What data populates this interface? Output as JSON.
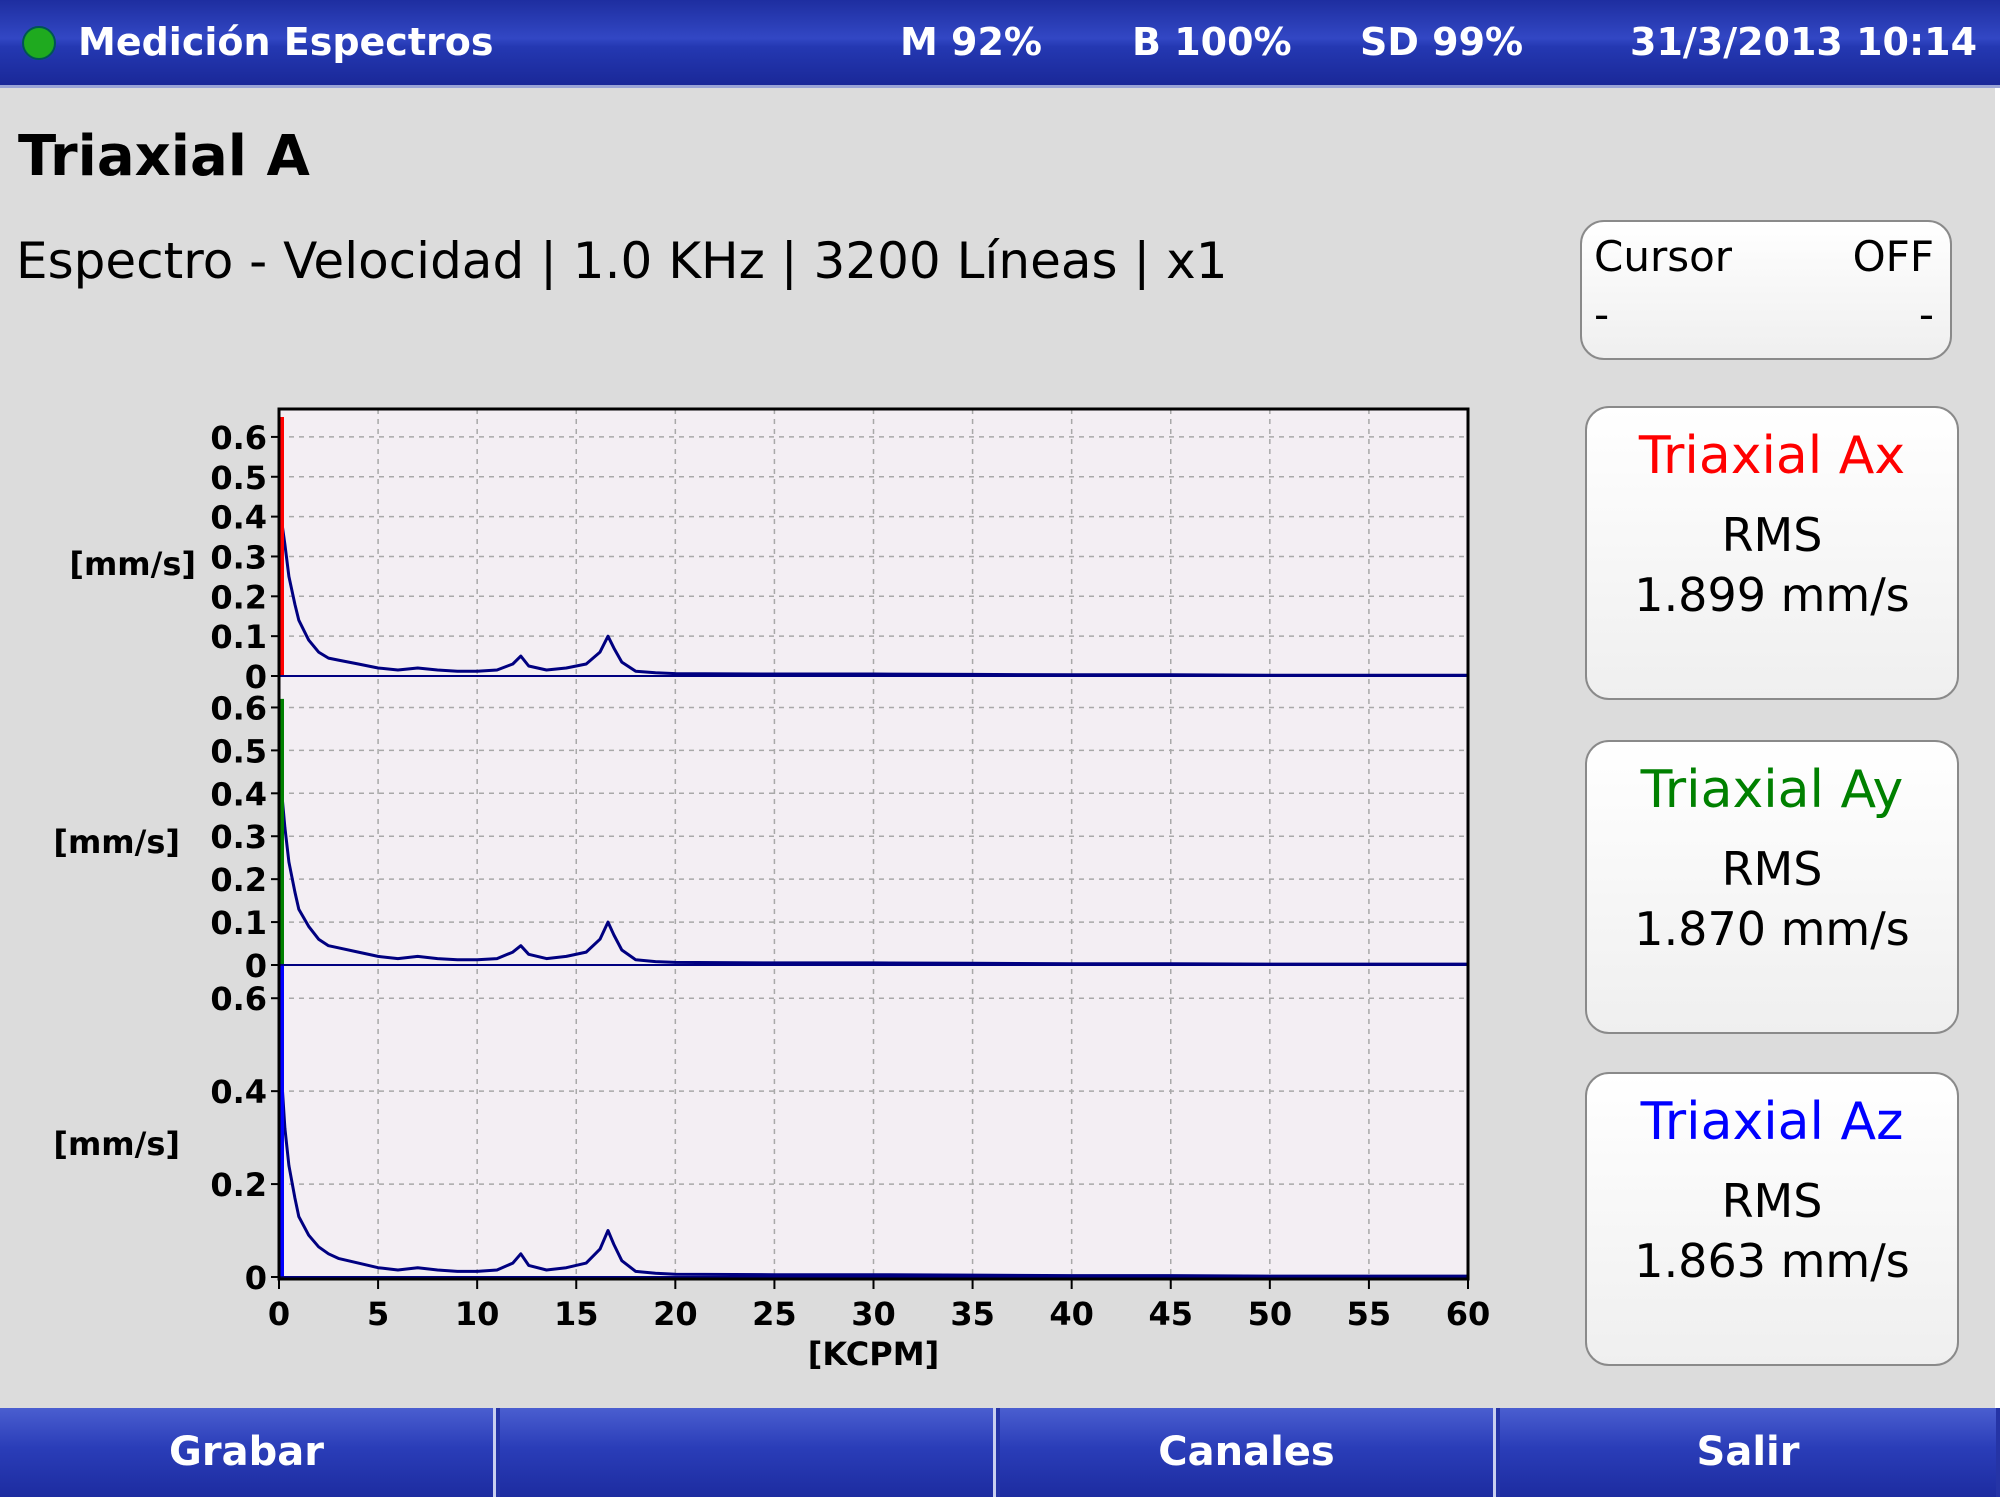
{
  "header": {
    "title": "Medición Espectros",
    "memory": "M 92%",
    "battery": "B 100%",
    "sd": "SD 99%",
    "datetime": "31/3/2013 10:14",
    "status_color": "#1faa1f"
  },
  "page_title": "Triaxial A",
  "subtitle": "Espectro - Velocidad | 1.0 KHz | 3200 Líneas | x1",
  "cursor": {
    "label": "Cursor",
    "state": "OFF",
    "left_value": "-",
    "right_value": "-"
  },
  "channels": [
    {
      "name": "Triaxial Ax",
      "label": "RMS",
      "value": "1.899 mm/s",
      "color": "#ff0000"
    },
    {
      "name": "Triaxial Ay",
      "label": "RMS",
      "value": "1.870 mm/s",
      "color": "#008000"
    },
    {
      "name": "Triaxial Az",
      "label": "RMS",
      "value": "1.863 mm/s",
      "color": "#0000ff"
    }
  ],
  "buttons": [
    "Grabar",
    "",
    "Canales",
    "Salir"
  ],
  "chart_data": {
    "type": "line",
    "xlabel": "[KCPM]",
    "xlim": [
      0,
      60
    ],
    "xticks": [
      0,
      5,
      10,
      15,
      20,
      25,
      30,
      35,
      40,
      45,
      50,
      55,
      60
    ],
    "grid": true,
    "line_color": "#000080",
    "panels": [
      {
        "ylabel": "[mm/s]",
        "ylim": [
          0,
          0.65
        ],
        "yticks": [
          0,
          0.1,
          0.2,
          0.3,
          0.4,
          0.5,
          0.6
        ],
        "marker_color": "#ff0000",
        "marker_top": 0.65
      },
      {
        "ylabel": "[mm/s]",
        "ylim": [
          0,
          0.65
        ],
        "yticks": [
          0,
          0.1,
          0.2,
          0.3,
          0.4,
          0.5,
          0.6
        ],
        "marker_color": "#008000",
        "marker_top": 0.62
      },
      {
        "ylabel": "[mm/s]",
        "ylim": [
          0,
          0.65
        ],
        "yticks": [
          0,
          0.2,
          0.4,
          0.6
        ],
        "marker_color": "#0000ff",
        "marker_top": 0.67
      }
    ],
    "series": [
      {
        "x": [
          0,
          0.1,
          0.3,
          0.5,
          0.8,
          1.0,
          1.5,
          2.0,
          2.5,
          3.0,
          4.0,
          5.0,
          6.0,
          7.0,
          8.0,
          9.0,
          10.0,
          11.0,
          11.8,
          12.2,
          12.6,
          13.5,
          14.5,
          15.5,
          16.2,
          16.6,
          16.9,
          17.3,
          18.0,
          19.0,
          20.0,
          25.0,
          30.0,
          35.0,
          40.0,
          45.0,
          50.0,
          55.0,
          60.0
        ],
        "y": [
          0.55,
          0.4,
          0.33,
          0.25,
          0.18,
          0.14,
          0.09,
          0.06,
          0.045,
          0.04,
          0.03,
          0.02,
          0.015,
          0.02,
          0.015,
          0.012,
          0.012,
          0.015,
          0.03,
          0.05,
          0.025,
          0.015,
          0.02,
          0.03,
          0.06,
          0.1,
          0.07,
          0.035,
          0.012,
          0.008,
          0.006,
          0.005,
          0.005,
          0.004,
          0.003,
          0.003,
          0.002,
          0.002,
          0.002
        ]
      },
      {
        "x": [
          0,
          0.1,
          0.3,
          0.5,
          0.8,
          1.0,
          1.5,
          2.0,
          2.5,
          3.0,
          4.0,
          5.0,
          6.0,
          7.0,
          8.0,
          9.0,
          10.0,
          11.0,
          11.8,
          12.2,
          12.6,
          13.5,
          14.5,
          15.5,
          16.2,
          16.6,
          16.9,
          17.3,
          18.0,
          19.0,
          20.0,
          25.0,
          30.0,
          35.0,
          40.0,
          45.0,
          50.0,
          55.0,
          60.0
        ],
        "y": [
          0.58,
          0.42,
          0.32,
          0.24,
          0.17,
          0.13,
          0.09,
          0.06,
          0.045,
          0.04,
          0.03,
          0.02,
          0.015,
          0.02,
          0.015,
          0.012,
          0.012,
          0.015,
          0.03,
          0.045,
          0.025,
          0.015,
          0.02,
          0.03,
          0.06,
          0.1,
          0.07,
          0.035,
          0.012,
          0.008,
          0.006,
          0.005,
          0.005,
          0.004,
          0.003,
          0.003,
          0.002,
          0.002,
          0.002
        ]
      },
      {
        "x": [
          0,
          0.1,
          0.3,
          0.5,
          0.8,
          1.0,
          1.5,
          2.0,
          2.5,
          3.0,
          4.0,
          5.0,
          6.0,
          7.0,
          8.0,
          9.0,
          10.0,
          11.0,
          11.8,
          12.2,
          12.6,
          13.5,
          14.5,
          15.5,
          16.2,
          16.6,
          16.9,
          17.3,
          18.0,
          19.0,
          20.0,
          25.0,
          30.0,
          35.0,
          40.0,
          45.0,
          50.0,
          55.0,
          60.0
        ],
        "y": [
          0.6,
          0.45,
          0.32,
          0.24,
          0.17,
          0.13,
          0.09,
          0.065,
          0.05,
          0.04,
          0.03,
          0.02,
          0.015,
          0.02,
          0.015,
          0.012,
          0.012,
          0.015,
          0.03,
          0.05,
          0.025,
          0.015,
          0.02,
          0.03,
          0.06,
          0.1,
          0.07,
          0.035,
          0.012,
          0.008,
          0.006,
          0.005,
          0.005,
          0.004,
          0.003,
          0.003,
          0.002,
          0.002,
          0.002
        ]
      }
    ]
  }
}
